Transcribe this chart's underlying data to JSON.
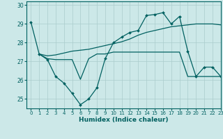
{
  "xlabel": "Humidex (Indice chaleur)",
  "background_color": "#cce8e8",
  "grid_color": "#aacccc",
  "line_color": "#006060",
  "xlim": [
    -0.5,
    23
  ],
  "ylim": [
    24.5,
    30.2
  ],
  "yticks": [
    25,
    26,
    27,
    28,
    29,
    30
  ],
  "xticks": [
    0,
    1,
    2,
    3,
    4,
    5,
    6,
    7,
    8,
    9,
    10,
    11,
    12,
    13,
    14,
    15,
    16,
    17,
    18,
    19,
    20,
    21,
    22,
    23
  ],
  "series1_x": [
    0,
    1,
    2,
    3,
    4,
    5,
    6,
    7,
    8,
    9,
    10,
    11,
    12,
    13,
    14,
    15,
    16,
    17,
    18,
    19,
    20,
    21,
    22,
    23
  ],
  "series1_y": [
    29.1,
    27.4,
    27.1,
    26.2,
    25.85,
    25.3,
    24.7,
    25.0,
    25.6,
    27.15,
    28.0,
    28.3,
    28.55,
    28.65,
    29.45,
    29.5,
    29.6,
    29.0,
    29.4,
    27.55,
    26.2,
    26.7,
    26.7,
    26.2
  ],
  "series2_x": [
    1,
    2,
    3,
    4,
    5,
    6,
    7,
    8,
    9,
    10,
    11,
    12,
    13,
    14,
    15,
    16,
    17,
    18,
    19,
    20,
    21,
    22,
    23
  ],
  "series2_y": [
    27.4,
    27.15,
    27.1,
    27.1,
    27.1,
    26.05,
    27.15,
    27.4,
    27.4,
    27.5,
    27.5,
    27.5,
    27.5,
    27.5,
    27.5,
    27.5,
    27.5,
    27.5,
    26.2,
    26.2,
    26.2,
    26.2,
    26.2
  ],
  "series3_x": [
    1,
    2,
    3,
    4,
    5,
    6,
    7,
    8,
    9,
    10,
    11,
    12,
    13,
    14,
    15,
    16,
    17,
    18,
    19,
    20,
    21,
    22,
    23
  ],
  "series3_y": [
    27.4,
    27.3,
    27.35,
    27.45,
    27.55,
    27.6,
    27.65,
    27.75,
    27.85,
    27.95,
    28.05,
    28.2,
    28.4,
    28.55,
    28.65,
    28.75,
    28.85,
    28.9,
    28.95,
    29.0,
    29.0,
    29.0,
    28.95
  ]
}
